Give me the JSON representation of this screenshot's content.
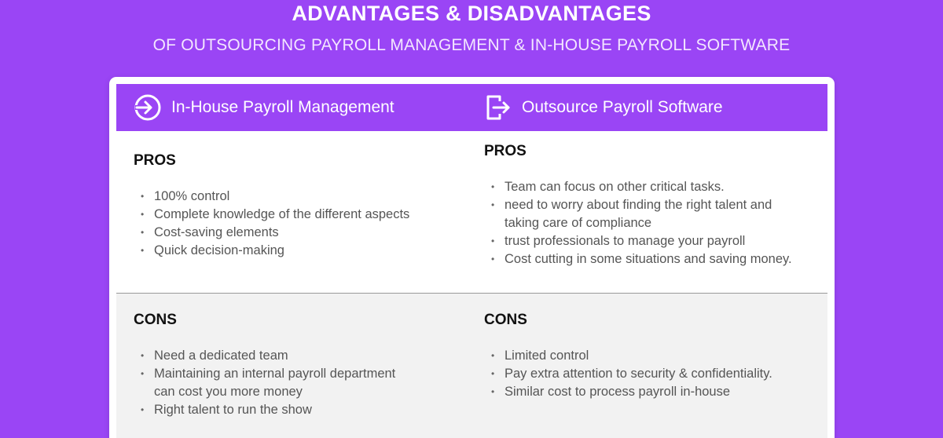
{
  "heading": {
    "title": "ADVANTAGES & DISADVANTAGES",
    "subtitle": "OF OUTSOURCING PAYROLL MANAGEMENT & IN-HOUSE PAYROLL SOFTWARE"
  },
  "columns": {
    "left": {
      "title": "In-House Payroll Management",
      "icon": "sign-in-arrow-icon",
      "pros_heading": "PROS",
      "pros": [
        "100% control",
        "Complete knowledge of the different aspects",
        "Cost-saving elements",
        "Quick decision-making"
      ],
      "cons_heading": "CONS",
      "cons": [
        "Need a dedicated team",
        "Maintaining an internal payroll department can cost you more money",
        "Right talent to run the show"
      ]
    },
    "right": {
      "title": "Outsource Payroll Software",
      "icon": "exit-arrow-icon",
      "pros_heading": "PROS",
      "pros": [
        "Team can focus on other critical tasks.",
        "need to worry about finding the right talent and taking care of compliance",
        "trust professionals to manage your payroll",
        "Cost cutting in some situations and saving money."
      ],
      "cons_heading": "CONS",
      "cons": [
        "Limited control",
        "Pay extra attention to security & confidentiality.",
        "Similar cost to process payroll in-house"
      ]
    }
  },
  "colors": {
    "accent": "#9a45f5",
    "card": "#ffffff",
    "cons_background": "#f2f2f2"
  }
}
